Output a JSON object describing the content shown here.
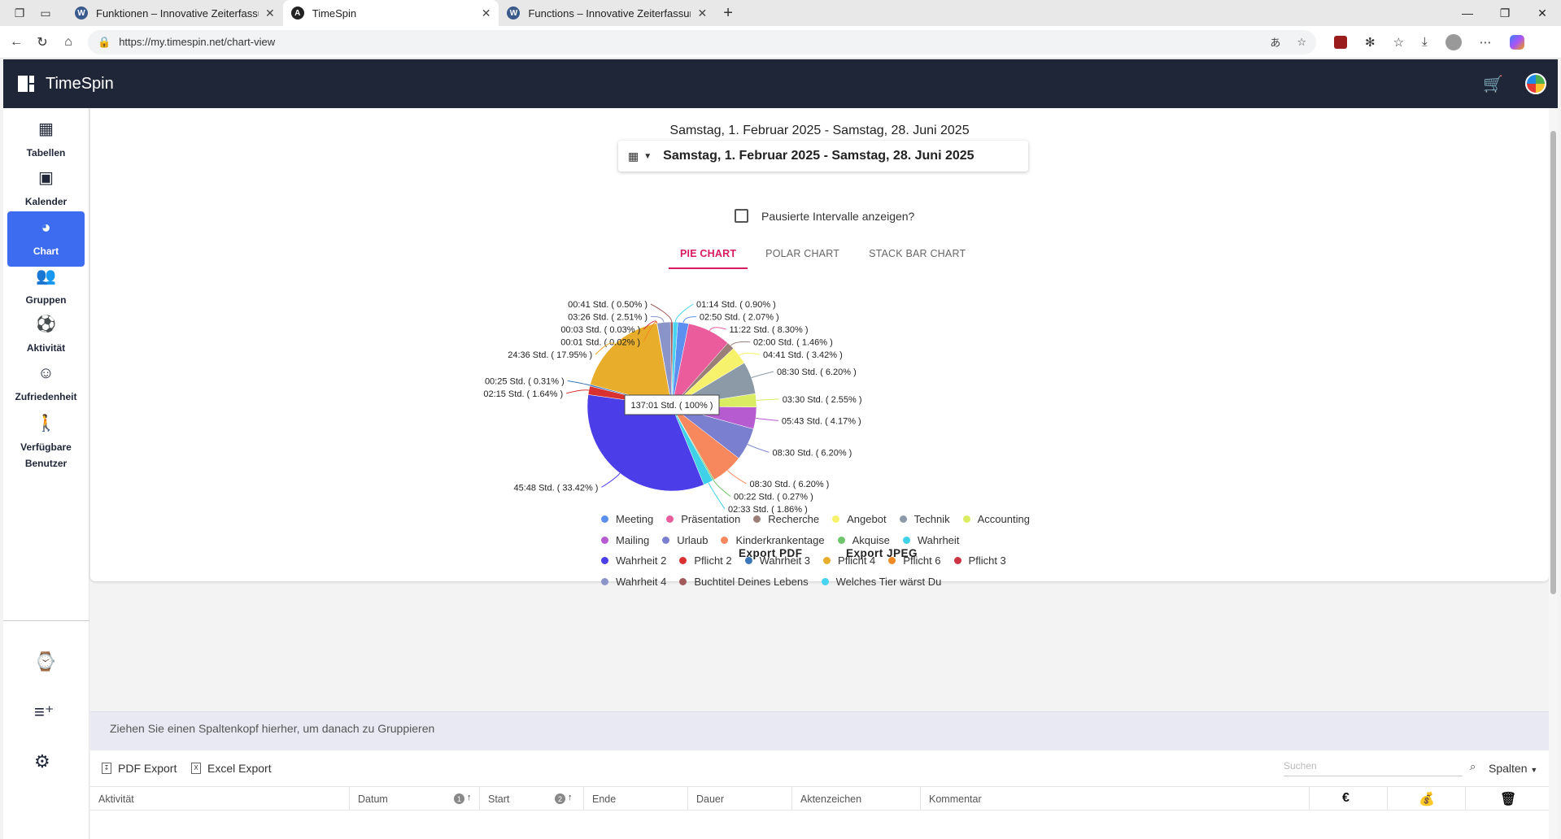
{
  "browser": {
    "tabs": [
      {
        "title": "Funktionen – Innovative Zeiterfassung",
        "active": false
      },
      {
        "title": "TimeSpin",
        "active": true
      },
      {
        "title": "Functions – Innovative Zeiterfassung",
        "active": false
      }
    ],
    "url": "https://my.timespin.net/chart-view"
  },
  "app": {
    "title": "TimeSpin"
  },
  "sidebar": {
    "items": [
      {
        "label": "Tabellen",
        "icon": "table-icon"
      },
      {
        "label": "Kalender",
        "icon": "calendar-icon"
      },
      {
        "label": "Chart",
        "icon": "pie-chart-icon",
        "active": true
      },
      {
        "label": "Gruppen",
        "icon": "group-icon"
      },
      {
        "label": "Aktivität",
        "icon": "activity-icon"
      },
      {
        "label": "Zufriedenheit",
        "icon": "smiley-icon"
      },
      {
        "label": "Verfügbare Benutzer",
        "icon": "person-icon"
      }
    ],
    "bottom_icons": [
      "watch-icon",
      "playlist-add-icon",
      "settings-icon"
    ]
  },
  "chart_view": {
    "date_title": "Samstag, 1. Februar 2025 - Samstag, 28. Juni 2025",
    "date_range_value": "Samstag, 1. Februar 2025 - Samstag, 28. Juni 2025",
    "paused_checkbox_label": "Pausierte Intervalle anzeigen?",
    "paused_checked": false,
    "tabs": [
      "PIE CHART",
      "POLAR CHART",
      "STACK BAR CHART"
    ],
    "active_tab": 0,
    "export_pdf": "Export PDF",
    "export_jpeg": "Export JPEG",
    "tooltip": "137:01 Std. ( 100% )"
  },
  "chart_data": {
    "type": "pie",
    "total_label": "137:01 Std. ( 100% )",
    "slices": [
      {
        "name": "Meeting",
        "label": "02:50 Std. ( 2.07% )",
        "percent": 2.07,
        "color": "#5b8ff0"
      },
      {
        "name": "Präsentation",
        "label": "11:22 Std. ( 8.30% )",
        "percent": 8.3,
        "color": "#ea5c9b"
      },
      {
        "name": "Recherche",
        "label": "02:00 Std. ( 1.46% )",
        "percent": 1.46,
        "color": "#9a7f78"
      },
      {
        "name": "Angebot",
        "label": "04:41 Std. ( 3.42% )",
        "percent": 3.42,
        "color": "#f7f26b"
      },
      {
        "name": "Technik",
        "label": "08:30 Std. ( 6.20% )",
        "percent": 6.2,
        "color": "#8c9aa8"
      },
      {
        "name": "Accounting",
        "label": "03:30 Std. ( 2.55% )",
        "percent": 2.55,
        "color": "#d9ec62"
      },
      {
        "name": "Mailing",
        "label": "05:43 Std. ( 4.17% )",
        "percent": 4.17,
        "color": "#b75bd0"
      },
      {
        "name": "Urlaub",
        "label": "08:30 Std. ( 6.20% )",
        "percent": 6.2,
        "color": "#7b7fcf"
      },
      {
        "name": "Kinderkrankentage",
        "label": "08:30 Std. ( 6.20% )",
        "percent": 6.2,
        "color": "#f7875d"
      },
      {
        "name": "Akquise",
        "label": "00:22 Std. ( 0.27% )",
        "percent": 0.27,
        "color": "#6ec56a"
      },
      {
        "name": "Wahrheit",
        "label": "02:33 Std. ( 1.86% )",
        "percent": 1.86,
        "color": "#3ed1e8"
      },
      {
        "name": "Wahrheit 2",
        "label": "45:48 Std. ( 33.42% )",
        "percent": 33.42,
        "color": "#4b3ee8"
      },
      {
        "name": "Pflicht 2",
        "label": "02:15 Std. ( 1.64% )",
        "percent": 1.64,
        "color": "#d93030"
      },
      {
        "name": "Wahrheit 3",
        "label": "00:25 Std. ( 0.31% )",
        "percent": 0.31,
        "color": "#3b77b8"
      },
      {
        "name": "Pflicht 4",
        "label": "24:36 Std. ( 17.95% )",
        "percent": 17.95,
        "color": "#e8ad2a"
      },
      {
        "name": "Pflicht 6",
        "label": "00:01 Std. ( 0.02% )",
        "percent": 0.02,
        "color": "#f08a24"
      },
      {
        "name": "Pflicht 3",
        "label": "00:03 Std. ( 0.03% )",
        "percent": 0.03,
        "color": "#cc3344"
      },
      {
        "name": "Wahrheit 4",
        "label": "03:26 Std. ( 2.51% )",
        "percent": 2.51,
        "color": "#8a94c8"
      },
      {
        "name": "Buchtitel Deines Lebens",
        "label": "00:41 Std. ( 0.50% )",
        "percent": 0.5,
        "color": "#a05a5a"
      },
      {
        "name": "Welches Tier wärst Du",
        "label": "01:14 Std. ( 0.90% )",
        "percent": 0.9,
        "color": "#46d4f0"
      }
    ]
  },
  "grid": {
    "group_hint": "Ziehen Sie einen Spaltenkopf hierher, um danach zu Gruppieren",
    "pdf_export": "PDF Export",
    "excel_export": "Excel Export",
    "search_placeholder": "Suchen",
    "columns_button": "Spalten",
    "columns": [
      "Aktivität",
      "Datum",
      "Start",
      "Ende",
      "Dauer",
      "Aktenzeichen",
      "Kommentar"
    ],
    "sort_badges": [
      "1",
      "2"
    ],
    "action_icons": [
      "euro-icon",
      "money-bag-icon",
      "trash-icon"
    ]
  }
}
